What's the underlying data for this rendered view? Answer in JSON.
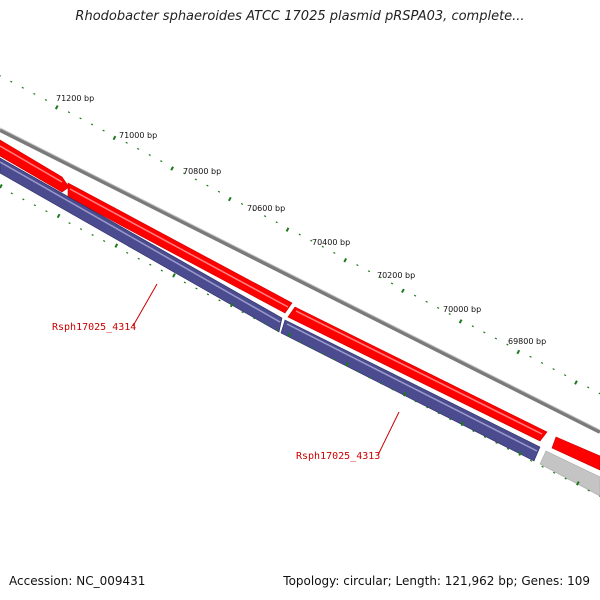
{
  "title": "Rhodobacter sphaeroides ATCC 17025 plasmid pRSPA03, complete...",
  "accession": "Accession: NC_009431",
  "summary": "Topology: circular; Length: 121,962 bp; Genes: 109",
  "colors": {
    "forward_gene": "#ff0000",
    "reverse_gene": "#4a4a8c",
    "backbone": "#808080",
    "tick": "#1a7a1a",
    "gene_label": "#cc0000"
  },
  "ticks": [
    {
      "label": "71200 bp"
    },
    {
      "label": "71000 bp"
    },
    {
      "label": "70800 bp"
    },
    {
      "label": "70600 bp"
    },
    {
      "label": "70400 bp"
    },
    {
      "label": "70200 bp"
    },
    {
      "label": "70000 bp"
    },
    {
      "label": "69800 bp"
    }
  ],
  "genes": [
    {
      "name": "Rsph17025_4314",
      "strand": "reverse"
    },
    {
      "name": "Rsph17025_4313",
      "strand": "reverse"
    }
  ]
}
